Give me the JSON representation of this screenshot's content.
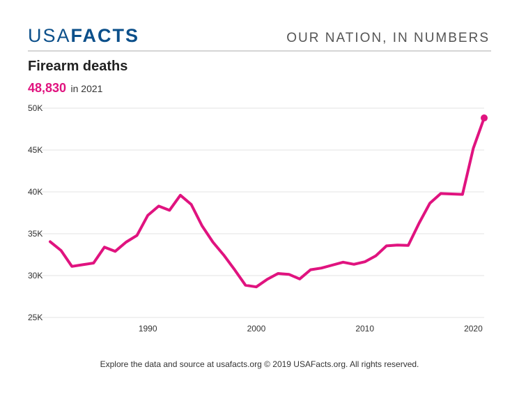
{
  "header": {
    "logo_usa": "USA",
    "logo_facts": "FACTS",
    "tagline": "OUR NATION, IN NUMBERS"
  },
  "colors": {
    "brand": "#0b4f8a",
    "line": "#e0137f",
    "grid": "#e3e3e3"
  },
  "footer": {
    "text": "Explore the data and source at usafacts.org © 2019 USAFacts.org. All rights reserved."
  },
  "chart_data": {
    "type": "line",
    "title": "Firearm deaths",
    "headline_value": "48,830",
    "headline_label": "in 2021",
    "xlabel": "",
    "ylabel": "",
    "xlim": [
      1981,
      2021
    ],
    "ylim": [
      25000,
      50000
    ],
    "grid": true,
    "y_ticks": [
      {
        "value": 25000,
        "label": "25K"
      },
      {
        "value": 30000,
        "label": "30K"
      },
      {
        "value": 35000,
        "label": "35K"
      },
      {
        "value": 40000,
        "label": "40K"
      },
      {
        "value": 45000,
        "label": "45K"
      },
      {
        "value": 50000,
        "label": "50K"
      }
    ],
    "x_ticks": [
      {
        "value": 1990,
        "label": "1990"
      },
      {
        "value": 2000,
        "label": "2000"
      },
      {
        "value": 2010,
        "label": "2010"
      },
      {
        "value": 2020,
        "label": "2020"
      }
    ],
    "series": [
      {
        "name": "Firearm deaths",
        "x": [
          1981,
          1982,
          1983,
          1984,
          1985,
          1986,
          1987,
          1988,
          1989,
          1990,
          1991,
          1992,
          1993,
          1994,
          1995,
          1996,
          1997,
          1998,
          1999,
          2000,
          2001,
          2002,
          2003,
          2004,
          2005,
          2006,
          2007,
          2008,
          2009,
          2010,
          2011,
          2012,
          2013,
          2014,
          2015,
          2016,
          2017,
          2018,
          2019,
          2020,
          2021
        ],
        "values": [
          34050,
          33000,
          31100,
          31300,
          31500,
          33400,
          32900,
          34000,
          34800,
          37200,
          38300,
          37800,
          39600,
          38500,
          35950,
          34000,
          32450,
          30700,
          28850,
          28650,
          29550,
          30250,
          30150,
          29600,
          30700,
          30900,
          31250,
          31600,
          31350,
          31650,
          32350,
          33550,
          33650,
          33600,
          36250,
          38650,
          39800,
          39750,
          39700,
          45200,
          48830
        ]
      }
    ]
  }
}
